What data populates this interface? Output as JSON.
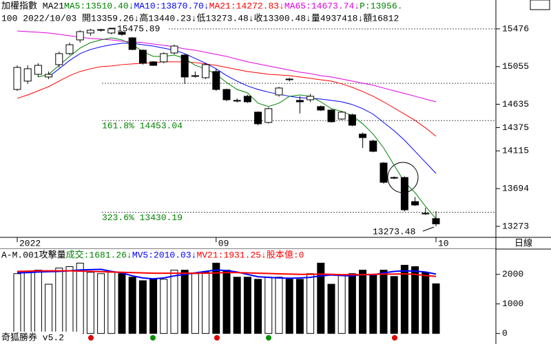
{
  "chart_data": [
    {
      "type": "candlestick",
      "title_parts": [
        [
          {
            "text": "加權指數 MA21",
            "color": "#000000"
          },
          {
            "text": "MA5:13510.40↓",
            "color": "#008000"
          },
          {
            "text": "MA10:13870.70↓",
            "color": "#0000ff"
          },
          {
            "text": "MA21:14272.83↓",
            "color": "#ff0000"
          },
          {
            "text": "MA65:14673.74↓",
            "color": "#e000e0"
          },
          {
            "text": "P:13956.",
            "color": "#008000"
          }
        ],
        [
          {
            "text": "100 2022/10/03 開13359.26↓高13440.23↓低13273.48↓收13300.48↓量4937418↓額16812",
            "color": "#000000"
          }
        ]
      ],
      "categories": [
        "2022",
        null,
        null,
        null,
        null,
        null,
        null,
        null,
        null,
        null,
        null,
        null,
        null,
        null,
        null,
        null,
        null,
        null,
        null,
        "09",
        null,
        null,
        null,
        null,
        null,
        null,
        null,
        null,
        null,
        null,
        null,
        null,
        null,
        null,
        null,
        null,
        null,
        null,
        null,
        null,
        "10"
      ],
      "open": [
        14800,
        14893,
        14969,
        14939,
        15077,
        15200,
        15353,
        15430,
        15461,
        15430,
        15438,
        15376,
        15238,
        15108,
        15108,
        15207,
        15184,
        14946,
        14931,
        15000,
        14800,
        14678,
        14724,
        14547,
        14432,
        14739,
        14916,
        14678,
        14685,
        14609,
        14570,
        14470,
        14517,
        14302,
        14225,
        13979,
        13818,
        13818,
        13549,
        13419,
        13359.26
      ],
      "high": [
        15069,
        15069,
        15092,
        15000,
        15223,
        15322,
        15461,
        15476,
        15476,
        15475.89,
        15453,
        15384,
        15246,
        15115,
        15215,
        15300,
        15192,
        15000,
        15092,
        15031,
        14808,
        14700,
        14740,
        14555,
        14600,
        14830,
        14930,
        14724,
        14750,
        14620,
        14580,
        14560,
        14530,
        14320,
        14240,
        13990,
        13830,
        13830,
        13600,
        13480,
        13440.23
      ],
      "low": [
        14785,
        14862,
        14939,
        14916,
        15046,
        15184,
        15322,
        15400,
        15445,
        15415,
        15400,
        15238,
        15077,
        15062,
        15092,
        15192,
        14862,
        14931,
        14916,
        14785,
        14670,
        14655,
        14650,
        14400,
        14420,
        14720,
        14890,
        14532,
        14660,
        14560,
        14430,
        14460,
        14390,
        14148,
        14100,
        13750,
        13800,
        13440,
        13500,
        13400,
        13273.48
      ],
      "close": [
        15046,
        15031,
        15069,
        14969,
        15200,
        15299,
        15445,
        15461,
        15468,
        15476,
        15415,
        15246,
        15092,
        15069,
        15200,
        15284,
        14939,
        14954,
        15077,
        14800,
        14685,
        14670,
        14662,
        14417,
        14586,
        14816,
        14910,
        14662,
        14724,
        14570,
        14440,
        14547,
        14401,
        14263,
        14110,
        13764,
        13810,
        13457,
        13511,
        13415,
        13300.48
      ],
      "series": [
        {
          "color": "#e000e0",
          "values": [
            15453,
            15445,
            15438,
            15430,
            15415,
            15399,
            15384,
            15369,
            15361,
            15353,
            15338,
            15330,
            15323,
            15307,
            15292,
            15276,
            15253,
            15238,
            15215,
            15192,
            15169,
            15138,
            15108,
            15085,
            15062,
            15039,
            15016,
            14993,
            14977,
            14954,
            14939,
            14916,
            14893,
            14870,
            14847,
            14816,
            14785,
            14755,
            14724,
            14693,
            14662
          ]
        },
        {
          "color": "#ff0000",
          "values": [
            14701,
            14739,
            14785,
            14831,
            14893,
            14954,
            15000,
            15031,
            15054,
            15062,
            15077,
            15085,
            15092,
            15100,
            15108,
            15108,
            15108,
            15100,
            15085,
            15069,
            15046,
            15023,
            15000,
            14985,
            14969,
            14962,
            14954,
            14939,
            14924,
            14908,
            14893,
            14862,
            14824,
            14777,
            14724,
            14662,
            14593,
            14524,
            14455,
            14371,
            14278
          ]
        },
        {
          "color": "#0000ff",
          "values": [
            null,
            null,
            null,
            14939,
            15031,
            15123,
            15200,
            15246,
            15276,
            15299,
            15315,
            15315,
            15299,
            15284,
            15261,
            15238,
            15200,
            15146,
            15092,
            15031,
            14954,
            14893,
            14839,
            14800,
            14770,
            14747,
            14724,
            14708,
            14701,
            14693,
            14678,
            14662,
            14632,
            14586,
            14524,
            14432,
            14340,
            14233,
            14110,
            13987,
            13864
          ]
        },
        {
          "color": "#008000",
          "values": [
            null,
            null,
            14939,
            14969,
            15069,
            15169,
            15261,
            15322,
            15353,
            15376,
            15353,
            15299,
            15223,
            15169,
            15169,
            15184,
            15146,
            15069,
            15031,
            14969,
            14877,
            14800,
            14762,
            14647,
            14609,
            14647,
            14724,
            14739,
            14724,
            14662,
            14586,
            14555,
            14509,
            14417,
            14302,
            14148,
            13956,
            13764,
            13649,
            13496,
            13358
          ]
        }
      ],
      "levels": [
        {
          "value": 15475.89
        },
        {
          "value": 14868
        },
        {
          "value": 14453.04,
          "label": "161.8% 14453.04"
        },
        {
          "value": 13430.19,
          "label": "323.6% 13430.19"
        }
      ],
      "annotations": [
        "15475.89",
        "13273.48"
      ],
      "ylim": [
        13150,
        15798
      ],
      "yticks": [
        15476,
        15055,
        14635,
        14375,
        14115,
        13694,
        13273
      ],
      "period_label": "日線"
    },
    {
      "type": "bar",
      "title_parts": [
        [
          {
            "text": "A-M.001攻擊量 ",
            "color": "#000000"
          },
          {
            "text": "成交:1681.26↓",
            "color": "#008000"
          },
          {
            "text": "MV5:2010.03↓",
            "color": "#0000ff"
          },
          {
            "text": "MV21:1931.25↓",
            "color": "#ff0000"
          },
          {
            "text": "股本億:0",
            "color": "#ff0000"
          }
        ]
      ],
      "values": [
        2024,
        2071,
        2143,
        1667,
        2214,
        2262,
        2381,
        2071,
        2024,
        2071,
        2024,
        1905,
        1786,
        1833,
        1833,
        2143,
        2143,
        2024,
        2071,
        2381,
        2143,
        1905,
        1905,
        1833,
        1905,
        1905,
        1833,
        1833,
        2024,
        2381,
        1667,
        1976,
        2024,
        2143,
        1976,
        2143,
        1929,
        2310,
        2262,
        2071,
        1681.26
      ],
      "series": [
        {
          "color": "#0000ff",
          "values": [
            2050,
            2060,
            2080,
            2090,
            2100,
            2120,
            2150,
            2160,
            2170,
            2100,
            2050,
            1950,
            1880,
            1850,
            1880,
            1950,
            2000,
            2050,
            2100,
            2150,
            2130,
            2080,
            2000,
            1920,
            1900,
            1880,
            1870,
            1880,
            1900,
            1950,
            1980,
            1960,
            1950,
            2000,
            1980,
            2050,
            2100,
            2120,
            2110,
            2080,
            2010.03
          ]
        },
        {
          "color": "#ff0000",
          "values": [
            2100,
            2110,
            2120,
            2120,
            2120,
            2120,
            2110,
            2100,
            2090,
            2080,
            2070,
            2060,
            2050,
            2040,
            2040,
            2040,
            2040,
            2040,
            2040,
            2050,
            2060,
            2060,
            2050,
            2040,
            2030,
            2020,
            2010,
            2000,
            2000,
            2010,
            2000,
            1990,
            1990,
            1990,
            2000,
            2010,
            2010,
            2020,
            2000,
            1960,
            1931.25
          ]
        }
      ],
      "ylim": [
        -357,
        2857
      ],
      "yticks": [
        2000,
        1000,
        0
      ],
      "footer": "奇狐勝券 v5.2"
    }
  ]
}
